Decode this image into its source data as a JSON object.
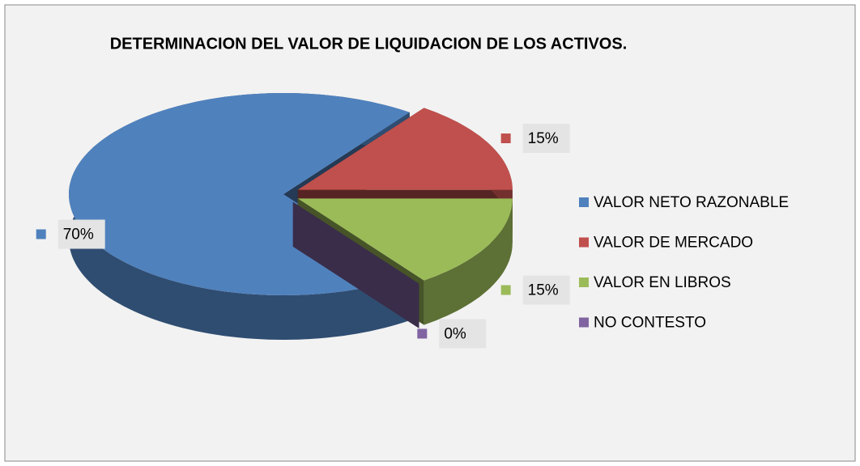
{
  "chart_data": {
    "type": "pie3d",
    "title": "DETERMINACION DEL VALOR DE LIQUIDACION DE LOS ACTIVOS.",
    "categories": [
      "VALOR NETO RAZONABLE",
      "VALOR DE MERCADO",
      "VALOR EN LIBROS",
      "NO CONTESTO"
    ],
    "values": [
      70,
      15,
      15,
      0
    ],
    "value_labels": [
      "70%",
      "15%",
      "15%",
      "0%"
    ],
    "colors": [
      "#4f81bd",
      "#c0504d",
      "#9bbb59",
      "#8064a2"
    ],
    "legend": "right"
  }
}
